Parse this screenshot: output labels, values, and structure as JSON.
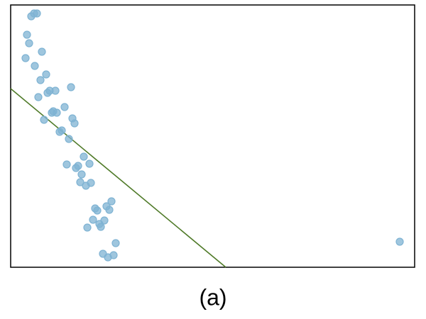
{
  "chart_data": {
    "type": "scatter",
    "caption": "(a)",
    "xlim": [
      0,
      569
    ],
    "ylim": [
      0,
      370
    ],
    "points": {
      "color": "#7fb3d3",
      "x": [
        29,
        33,
        37,
        23,
        26,
        44,
        21,
        34,
        50,
        42,
        85,
        63,
        55,
        52,
        39,
        76,
        60,
        65,
        58,
        87,
        90,
        47,
        72,
        69,
        82,
        103,
        111,
        79,
        95,
        92,
        100,
        98,
        113,
        106,
        119,
        122,
        135,
        142,
        139,
        132,
        116,
        125,
        108,
        127,
        148,
        130,
        137,
        145,
        548
      ],
      "y": [
        354,
        358,
        358,
        328,
        316,
        304,
        295,
        284,
        272,
        264,
        254,
        249,
        249,
        246,
        240,
        226,
        220,
        218,
        218,
        210,
        203,
        208,
        193,
        191,
        181,
        156,
        146,
        145,
        143,
        140,
        131,
        120,
        119,
        115,
        83,
        80,
        86,
        93,
        81,
        66,
        67,
        61,
        56,
        57,
        34,
        19,
        14,
        17,
        36
      ]
    },
    "fit_line": {
      "color": "#4f7a28",
      "x": [
        0,
        303
      ],
      "y": [
        252,
        0
      ]
    }
  }
}
